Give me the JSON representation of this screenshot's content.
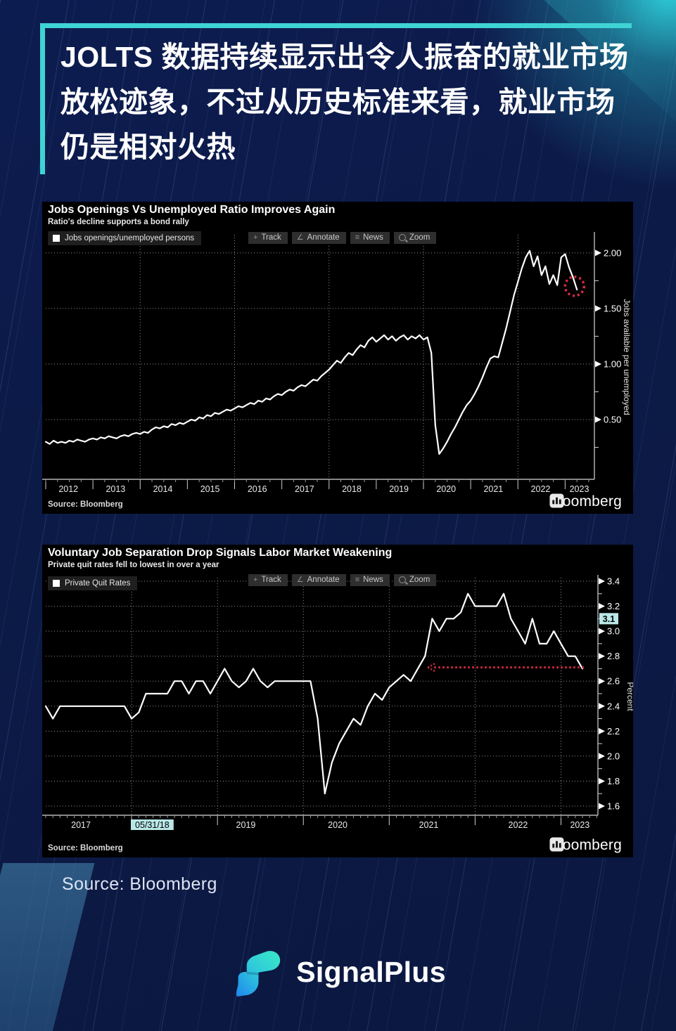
{
  "page": {
    "background_color": "#0c1a47",
    "accent_color": "#3fd4d4",
    "headline": "JOLTS 数据持续显示出令人振奋的就业市场放松迹象，不过从历史标准来看，就业市场仍是相对火热",
    "source_caption": "Source: Bloomberg",
    "brand_name": "SignalPlus"
  },
  "toolbar": {
    "track_label": "Track",
    "annotate_label": "Annotate",
    "news_label": "News",
    "zoom_label": "Zoom",
    "track_icon": "+",
    "annotate_icon": "∠",
    "news_icon": "≡"
  },
  "bloomberg": {
    "logo_text": "Bloomberg"
  },
  "chart_data": [
    {
      "type": "line",
      "title": "Jobs Openings Vs Unemployed Ratio Improves Again",
      "subtitle": "Ratio's decline supports a bond rally",
      "legend": "Jobs openings/unemployed persons",
      "ylabel": "Jobs available per unemployed",
      "source": "Source: Bloomberg",
      "line_color": "#ffffff",
      "grid": "dotted",
      "ylim": [
        0,
        2.16
      ],
      "yticks": [
        {
          "label": "2.00",
          "v": 2.0
        },
        {
          "label": "1.50",
          "v": 1.5
        },
        {
          "label": "1.00",
          "v": 1.0
        },
        {
          "label": "0.50",
          "v": 0.5
        }
      ],
      "yticks_minor": [
        1.75,
        1.25,
        0.75,
        0.25
      ],
      "xgrid_years": [
        2014,
        2016,
        2018,
        2020,
        2022
      ],
      "xboundaries": [
        2012,
        2013,
        2014,
        2015,
        2016,
        2017,
        2018,
        2019,
        2020,
        2021,
        2022,
        2023
      ],
      "xticks": [
        {
          "label": "2012",
          "x": 2012.48
        },
        {
          "label": "2013",
          "x": 2013.48
        },
        {
          "label": "2014",
          "x": 2014.48
        },
        {
          "label": "2015",
          "x": 2015.48
        },
        {
          "label": "2016",
          "x": 2016.48
        },
        {
          "label": "2017",
          "x": 2017.48
        },
        {
          "label": "2018",
          "x": 2018.48
        },
        {
          "label": "2019",
          "x": 2019.48
        },
        {
          "label": "2020",
          "x": 2020.48
        },
        {
          "label": "2021",
          "x": 2021.48
        },
        {
          "label": "2022",
          "x": 2022.48
        },
        {
          "label": "2023",
          "x": 2023.3
        }
      ],
      "x_start": 2012.0,
      "x_step": 0.083333,
      "values": [
        0.3,
        0.28,
        0.31,
        0.29,
        0.3,
        0.29,
        0.31,
        0.3,
        0.32,
        0.31,
        0.3,
        0.32,
        0.33,
        0.32,
        0.34,
        0.33,
        0.35,
        0.34,
        0.33,
        0.35,
        0.36,
        0.35,
        0.37,
        0.38,
        0.37,
        0.39,
        0.38,
        0.41,
        0.43,
        0.42,
        0.44,
        0.43,
        0.46,
        0.45,
        0.47,
        0.46,
        0.48,
        0.5,
        0.49,
        0.52,
        0.51,
        0.54,
        0.53,
        0.56,
        0.55,
        0.57,
        0.59,
        0.58,
        0.6,
        0.62,
        0.61,
        0.63,
        0.65,
        0.64,
        0.67,
        0.66,
        0.69,
        0.68,
        0.71,
        0.73,
        0.72,
        0.75,
        0.77,
        0.76,
        0.79,
        0.81,
        0.8,
        0.83,
        0.86,
        0.85,
        0.89,
        0.92,
        0.95,
        0.99,
        1.03,
        1.01,
        1.06,
        1.1,
        1.08,
        1.13,
        1.17,
        1.15,
        1.21,
        1.24,
        1.2,
        1.23,
        1.26,
        1.22,
        1.25,
        1.21,
        1.24,
        1.26,
        1.22,
        1.25,
        1.23,
        1.26,
        1.22,
        1.24,
        1.1,
        0.45,
        0.19,
        0.24,
        0.3,
        0.37,
        0.43,
        0.5,
        0.57,
        0.63,
        0.67,
        0.73,
        0.8,
        0.88,
        0.97,
        1.05,
        1.07,
        1.06,
        1.19,
        1.32,
        1.47,
        1.62,
        1.74,
        1.86,
        1.96,
        2.02,
        1.88,
        1.97,
        1.8,
        1.88,
        1.72,
        1.8,
        1.71,
        1.96,
        1.99,
        1.87,
        1.78,
        1.67
      ],
      "annotations": [
        {
          "kind": "circle",
          "x": 2023.2,
          "v": 1.7,
          "color": "#d92c44"
        }
      ]
    },
    {
      "type": "line",
      "title": "Voluntary Job Separation Drop Signals Labor Market Weakening",
      "subtitle": "Private quit rates fell to lowest in over a year",
      "legend": "Private Quit Rates",
      "ylabel": "Percent",
      "source": "Source: Bloomberg",
      "line_color": "#ffffff",
      "grid": "dotted",
      "ylim": [
        1.53,
        3.43
      ],
      "yticks": [
        {
          "label": "3.4",
          "v": 3.4
        },
        {
          "label": "3.2",
          "v": 3.2
        },
        {
          "label": "3.0",
          "v": 3.0
        },
        {
          "label": "2.8",
          "v": 2.8
        },
        {
          "label": "2.6",
          "v": 2.6
        },
        {
          "label": "2.4",
          "v": 2.4
        },
        {
          "label": "2.2",
          "v": 2.2
        },
        {
          "label": "2.0",
          "v": 2.0
        },
        {
          "label": "1.8",
          "v": 1.8
        },
        {
          "label": "1.6",
          "v": 1.6
        }
      ],
      "yticks_minor": [
        3.3,
        3.1,
        2.9,
        2.7,
        2.5,
        2.3,
        2.1,
        1.9,
        1.7
      ],
      "xgrid_years": [
        2018,
        2019,
        2020,
        2021,
        2022,
        2023
      ],
      "xboundaries": [
        2018,
        2019,
        2020,
        2021,
        2022,
        2023
      ],
      "xticks": [
        {
          "label": "2017",
          "x": 2017.41
        },
        {
          "label": "05/31/18",
          "x": 2018.24,
          "highlight": true
        },
        {
          "label": "2019",
          "x": 2019.33
        },
        {
          "label": "2020",
          "x": 2020.4
        },
        {
          "label": "2021",
          "x": 2021.46
        },
        {
          "label": "2022",
          "x": 2022.5
        },
        {
          "label": "2023",
          "x": 2023.22
        }
      ],
      "x_start": 2017.0,
      "x_step": 0.083333,
      "values": [
        2.4,
        2.3,
        2.4,
        2.4,
        2.4,
        2.4,
        2.4,
        2.4,
        2.4,
        2.4,
        2.4,
        2.4,
        2.3,
        2.35,
        2.5,
        2.5,
        2.5,
        2.5,
        2.6,
        2.6,
        2.5,
        2.6,
        2.6,
        2.5,
        2.6,
        2.7,
        2.6,
        2.55,
        2.6,
        2.7,
        2.6,
        2.55,
        2.6,
        2.6,
        2.6,
        2.6,
        2.6,
        2.6,
        2.3,
        1.7,
        1.95,
        2.1,
        2.2,
        2.3,
        2.25,
        2.4,
        2.5,
        2.45,
        2.55,
        2.6,
        2.65,
        2.6,
        2.7,
        2.8,
        3.1,
        3.0,
        3.1,
        3.1,
        3.15,
        3.3,
        3.2,
        3.2,
        3.2,
        3.2,
        3.3,
        3.1,
        3.0,
        2.9,
        3.1,
        2.9,
        2.9,
        3.0,
        2.9,
        2.8,
        2.8,
        2.7
      ],
      "value_tag": {
        "label": "3.1",
        "v": 3.1,
        "bg": "#b9e7e7"
      },
      "annotations": [
        {
          "kind": "arrow-left",
          "x_from": 2021.45,
          "x_to": 2023.27,
          "v": 2.71,
          "color": "#d92c44"
        }
      ]
    }
  ]
}
